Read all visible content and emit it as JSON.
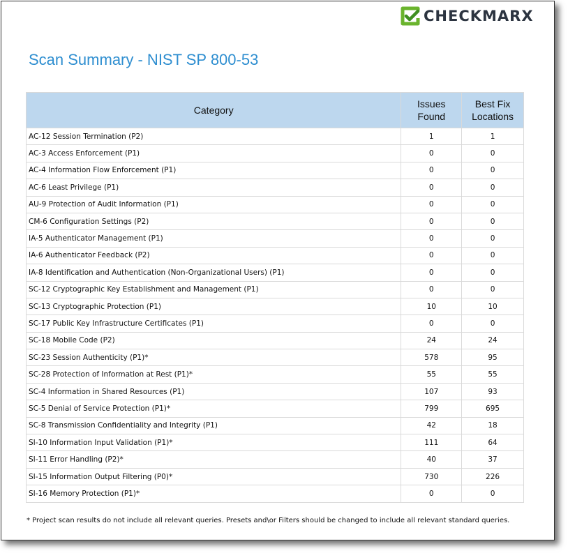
{
  "logo": {
    "text": "CHECKMARX",
    "colors": {
      "mark": "#6ab42d",
      "text": "#2c3440"
    }
  },
  "title": "Scan Summary - NIST SP 800-53",
  "table": {
    "headers": [
      "Category",
      "Issues Found",
      "Best Fix Locations"
    ],
    "rows": [
      {
        "category": "AC-12 Session Termination (P2)",
        "issues": "1",
        "best_fix": "1"
      },
      {
        "category": "AC-3 Access Enforcement (P1)",
        "issues": "0",
        "best_fix": "0"
      },
      {
        "category": "AC-4 Information Flow Enforcement (P1)",
        "issues": "0",
        "best_fix": "0"
      },
      {
        "category": "AC-6 Least Privilege (P1)",
        "issues": "0",
        "best_fix": "0"
      },
      {
        "category": "AU-9 Protection of Audit Information (P1)",
        "issues": "0",
        "best_fix": "0"
      },
      {
        "category": "CM-6 Configuration Settings (P2)",
        "issues": "0",
        "best_fix": "0"
      },
      {
        "category": "IA-5 Authenticator Management (P1)",
        "issues": "0",
        "best_fix": "0"
      },
      {
        "category": "IA-6 Authenticator Feedback (P2)",
        "issues": "0",
        "best_fix": "0"
      },
      {
        "category": "IA-8 Identification and Authentication (Non-Organizational Users) (P1)",
        "issues": "0",
        "best_fix": "0"
      },
      {
        "category": "SC-12 Cryptographic Key Establishment and Management (P1)",
        "issues": "0",
        "best_fix": "0"
      },
      {
        "category": "SC-13 Cryptographic Protection (P1)",
        "issues": "10",
        "best_fix": "10"
      },
      {
        "category": "SC-17 Public Key Infrastructure Certificates (P1)",
        "issues": "0",
        "best_fix": "0"
      },
      {
        "category": "SC-18 Mobile Code (P2)",
        "issues": "24",
        "best_fix": "24"
      },
      {
        "category": "SC-23 Session Authenticity (P1)*",
        "issues": "578",
        "best_fix": "95"
      },
      {
        "category": "SC-28 Protection of Information at Rest (P1)*",
        "issues": "55",
        "best_fix": "55"
      },
      {
        "category": "SC-4 Information in Shared Resources (P1)",
        "issues": "107",
        "best_fix": "93"
      },
      {
        "category": "SC-5 Denial of Service Protection (P1)*",
        "issues": "799",
        "best_fix": "695"
      },
      {
        "category": "SC-8 Transmission Confidentiality and Integrity (P1)",
        "issues": "42",
        "best_fix": "18"
      },
      {
        "category": "SI-10 Information Input Validation (P1)*",
        "issues": "111",
        "best_fix": "64"
      },
      {
        "category": "SI-11 Error Handling (P2)*",
        "issues": "40",
        "best_fix": "37"
      },
      {
        "category": "SI-15 Information Output Filtering (P0)*",
        "issues": "730",
        "best_fix": "226"
      },
      {
        "category": "SI-16 Memory Protection (P1)*",
        "issues": "0",
        "best_fix": "0"
      }
    ]
  },
  "footnote": "* Project scan results do not include all relevant queries. Presets and\\or Filters should be changed to include all relevant standard queries."
}
